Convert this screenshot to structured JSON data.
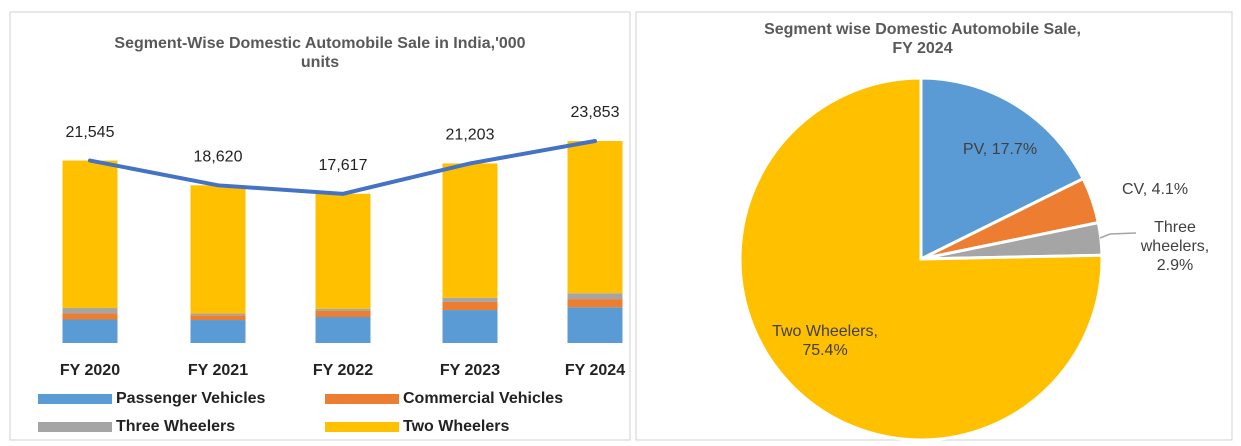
{
  "chart_data": [
    {
      "type": "bar",
      "stacked": true,
      "title": "Segment-Wise Domestic Automobile  Sale in India,'000 units",
      "categories": [
        "FY 2020",
        "FY 2021",
        "FY 2022",
        "FY 2023",
        "FY 2024"
      ],
      "series": [
        {
          "name": "Passenger Vehicles",
          "color": "#5b9bd5",
          "values": [
            2774,
            2711,
            3069,
            3890,
            4218
          ]
        },
        {
          "name": "Commercial Vehicles",
          "color": "#ed7d31",
          "values": [
            718,
            569,
            717,
            962,
            967
          ]
        },
        {
          "name": "Three Wheelers",
          "color": "#a5a5a5",
          "values": [
            637,
            216,
            261,
            489,
            691
          ]
        },
        {
          "name": "Two Wheelers",
          "color": "#ffc000",
          "values": [
            17416,
            15124,
            13570,
            15862,
            17977
          ]
        }
      ],
      "total": {
        "type": "line",
        "color": "#4472c4",
        "values": [
          21545,
          18620,
          17617,
          21203,
          23853
        ],
        "value_labels": [
          "21,545",
          "18,620",
          "17,617",
          "21,203",
          "23,853"
        ]
      }
    },
    {
      "type": "pie",
      "title": "Segment wise Domestic Automobile Sale, FY 2024",
      "values": [
        17.7,
        4.1,
        2.9,
        75.4
      ],
      "value_labels": [
        "PV, 17.7%",
        "CV, 4.1%",
        "Three wheelers, 2.9%",
        "Two Wheelers, 75.4%"
      ],
      "colors": [
        "#5b9bd5",
        "#ed7d31",
        "#a5a5a5",
        "#ffc000"
      ]
    }
  ]
}
